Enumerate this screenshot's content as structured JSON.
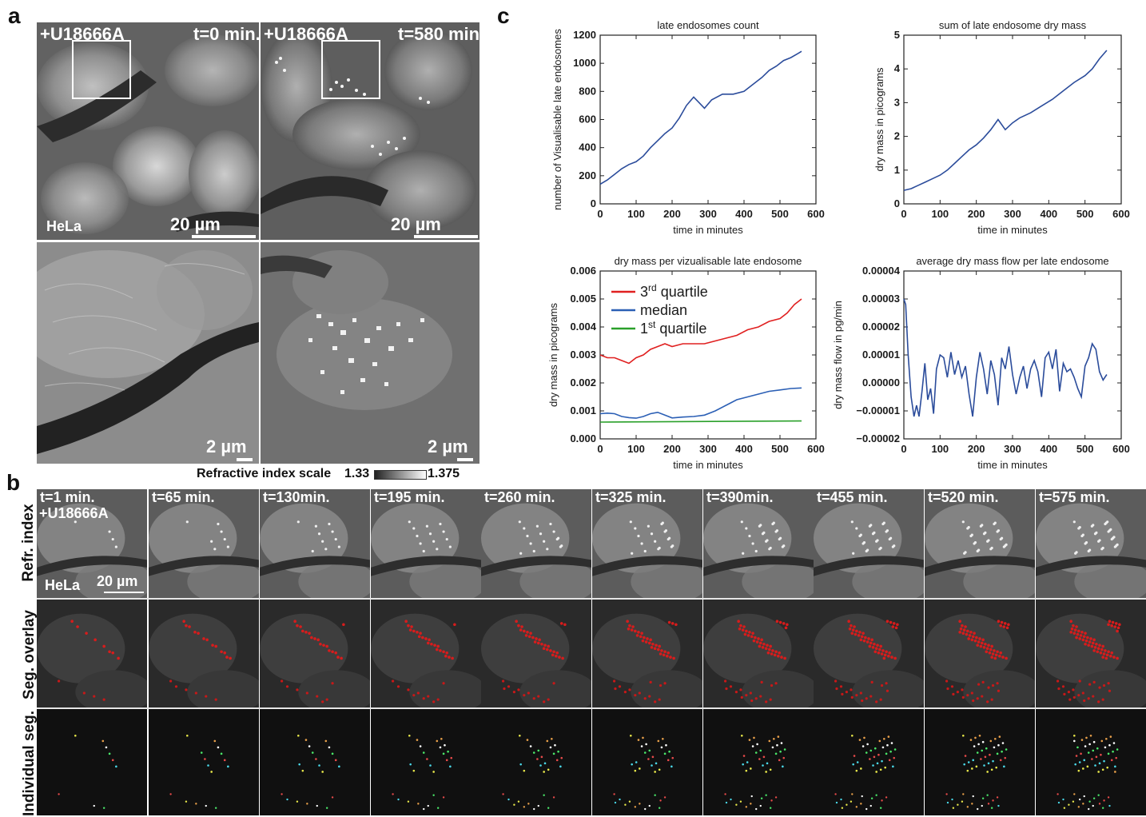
{
  "panel_labels": {
    "a": "a",
    "b": "b",
    "c": "c"
  },
  "panel_a": {
    "tl": {
      "drug": "+U18666A",
      "time": "t=0 min.",
      "cell": "HeLa",
      "scale": "20 µm"
    },
    "tr": {
      "drug": "+U18666A",
      "time": "t=580 min.",
      "scale": "20 µm"
    },
    "bl": {
      "scale": "2 µm"
    },
    "br": {
      "scale": "2 µm"
    },
    "ri_scale": {
      "label": "Refractive index scale",
      "min": "1.33",
      "max": "1.375"
    }
  },
  "panel_b": {
    "times": [
      "t=1 min.",
      "t=65 min.",
      "t=130min.",
      "t=195 min.",
      "t=260 min.",
      "t=325 min.",
      "t=390min.",
      "t=455 min.",
      "t=520 min.",
      "t=575 min."
    ],
    "first_drug": "+U18666A",
    "cell": "HeLa",
    "scale": "20 µm",
    "rows": [
      "Refr. index",
      "Seg. overlay",
      "Individual seg."
    ]
  },
  "chart_data": [
    {
      "type": "line",
      "title": "late endosomes count",
      "xlabel": "time in minutes",
      "ylabel": "number of Visualisable late endosomes",
      "xlim": [
        0,
        600
      ],
      "ylim": [
        0,
        1200
      ],
      "xticks": [
        "0",
        "100",
        "200",
        "300",
        "400",
        "500",
        "600"
      ],
      "yticks": [
        "0",
        "200",
        "400",
        "600",
        "800",
        "1000",
        "1200"
      ],
      "series": [
        {
          "color": "#2b4c9b",
          "x": [
            0,
            20,
            40,
            60,
            80,
            100,
            120,
            140,
            160,
            180,
            200,
            220,
            240,
            260,
            275,
            290,
            310,
            340,
            370,
            400,
            430,
            450,
            470,
            490,
            510,
            530,
            550,
            560
          ],
          "y": [
            140,
            170,
            210,
            250,
            280,
            300,
            340,
            400,
            450,
            500,
            540,
            610,
            700,
            760,
            720,
            680,
            740,
            780,
            780,
            800,
            860,
            900,
            950,
            980,
            1020,
            1040,
            1070,
            1085
          ]
        }
      ]
    },
    {
      "type": "line",
      "title": "sum of late endosome dry mass",
      "xlabel": "time in minutes",
      "ylabel": "dry mass in picograms",
      "xlim": [
        0,
        600
      ],
      "ylim": [
        0,
        5
      ],
      "xticks": [
        "0",
        "100",
        "200",
        "300",
        "400",
        "500",
        "600"
      ],
      "yticks": [
        "0",
        "1",
        "2",
        "3",
        "4",
        "5"
      ],
      "series": [
        {
          "color": "#2b4c9b",
          "x": [
            0,
            20,
            40,
            60,
            80,
            100,
            120,
            140,
            160,
            180,
            200,
            220,
            240,
            260,
            280,
            300,
            320,
            350,
            380,
            410,
            440,
            470,
            500,
            520,
            540,
            560
          ],
          "y": [
            0.4,
            0.45,
            0.55,
            0.65,
            0.75,
            0.85,
            1.0,
            1.2,
            1.4,
            1.6,
            1.75,
            1.95,
            2.2,
            2.5,
            2.2,
            2.4,
            2.55,
            2.7,
            2.9,
            3.1,
            3.35,
            3.6,
            3.8,
            4.0,
            4.3,
            4.55
          ]
        }
      ]
    },
    {
      "type": "line",
      "title": "dry mass per vizualisable late endosome",
      "xlabel": "time in minutes",
      "ylabel": "dry mass in picograms",
      "xlim": [
        0,
        600
      ],
      "ylim": [
        0,
        0.006
      ],
      "xticks": [
        "0",
        "100",
        "200",
        "300",
        "400",
        "500",
        "600"
      ],
      "yticks": [
        "0.000",
        "0.001",
        "0.002",
        "0.003",
        "0.004",
        "0.005",
        "0.006"
      ],
      "legend": [
        {
          "base": "3",
          "sup": "rd",
          "rest": " quartile",
          "color": "#e02020"
        },
        {
          "base": "median",
          "sup": "",
          "rest": "",
          "color": "#2b5fb5"
        },
        {
          "base": "1",
          "sup": "st",
          "rest": " quartile",
          "color": "#2aa02a"
        }
      ],
      "series": [
        {
          "name": "3rd quartile",
          "color": "#e02020",
          "x": [
            0,
            20,
            40,
            60,
            80,
            100,
            120,
            140,
            160,
            180,
            200,
            230,
            260,
            290,
            320,
            350,
            380,
            410,
            440,
            470,
            500,
            520,
            540,
            560
          ],
          "y": [
            0.003,
            0.0029,
            0.0029,
            0.0028,
            0.0027,
            0.0029,
            0.003,
            0.0032,
            0.0033,
            0.0034,
            0.0033,
            0.0034,
            0.0034,
            0.0034,
            0.0035,
            0.0036,
            0.0037,
            0.0039,
            0.004,
            0.0042,
            0.0043,
            0.0045,
            0.0048,
            0.005
          ]
        },
        {
          "name": "median",
          "color": "#2b5fb5",
          "x": [
            0,
            20,
            40,
            60,
            80,
            100,
            120,
            140,
            160,
            180,
            200,
            230,
            260,
            290,
            320,
            350,
            380,
            410,
            440,
            470,
            500,
            530,
            560
          ],
          "y": [
            0.0009,
            0.00092,
            0.0009,
            0.0008,
            0.00076,
            0.00074,
            0.0008,
            0.0009,
            0.00095,
            0.00085,
            0.00075,
            0.00078,
            0.0008,
            0.00085,
            0.001,
            0.0012,
            0.0014,
            0.0015,
            0.0016,
            0.0017,
            0.00175,
            0.0018,
            0.00182
          ]
        },
        {
          "name": "1st quartile",
          "color": "#2aa02a",
          "x": [
            0,
            560
          ],
          "y": [
            0.0006,
            0.00064
          ]
        }
      ]
    },
    {
      "type": "line",
      "title": "average dry mass flow per late endosome",
      "xlabel": "time in minutes",
      "ylabel": "dry mass flow in pg/min",
      "xlim": [
        0,
        600
      ],
      "ylim": [
        -2e-05,
        4e-05
      ],
      "xticks": [
        "0",
        "100",
        "200",
        "300",
        "400",
        "500",
        "600"
      ],
      "yticks": [
        "−0.00002",
        "−0.00001",
        "0.00000",
        "0.00001",
        "0.00002",
        "0.00003",
        "0.00004"
      ],
      "series": [
        {
          "color": "#2b4c9b",
          "x": [
            0,
            5,
            12,
            20,
            28,
            35,
            42,
            50,
            58,
            66,
            74,
            82,
            90,
            100,
            110,
            120,
            130,
            140,
            150,
            160,
            170,
            180,
            190,
            200,
            210,
            220,
            230,
            240,
            250,
            260,
            270,
            280,
            290,
            300,
            310,
            320,
            330,
            340,
            350,
            360,
            370,
            380,
            390,
            400,
            410,
            420,
            430,
            440,
            450,
            460,
            470,
            480,
            490,
            500,
            510,
            520,
            530,
            540,
            550,
            560
          ],
          "y": [
            3e-05,
            2.8e-05,
            1e-05,
            -5e-06,
            -1.2e-05,
            -8e-06,
            -1.2e-05,
            -3e-06,
            7e-06,
            -6e-06,
            -2e-06,
            -1.1e-05,
            5e-06,
            1e-05,
            9e-06,
            2e-06,
            1.1e-05,
            3e-06,
            8e-06,
            2e-06,
            6e-06,
            -4e-06,
            -1.2e-05,
            2e-06,
            1.1e-05,
            5e-06,
            -4e-06,
            8e-06,
            3e-06,
            -8e-06,
            9e-06,
            5e-06,
            1.3e-05,
            3e-06,
            -4e-06,
            2e-06,
            6e-06,
            -2e-06,
            5e-06,
            8e-06,
            4e-06,
            -5e-06,
            9e-06,
            1.1e-05,
            5e-06,
            1.2e-05,
            -3e-06,
            7e-06,
            4e-06,
            5e-06,
            2e-06,
            -2e-06,
            -5e-06,
            6e-06,
            9e-06,
            1.4e-05,
            1.2e-05,
            4e-06,
            1e-06,
            3e-06
          ]
        }
      ]
    }
  ]
}
